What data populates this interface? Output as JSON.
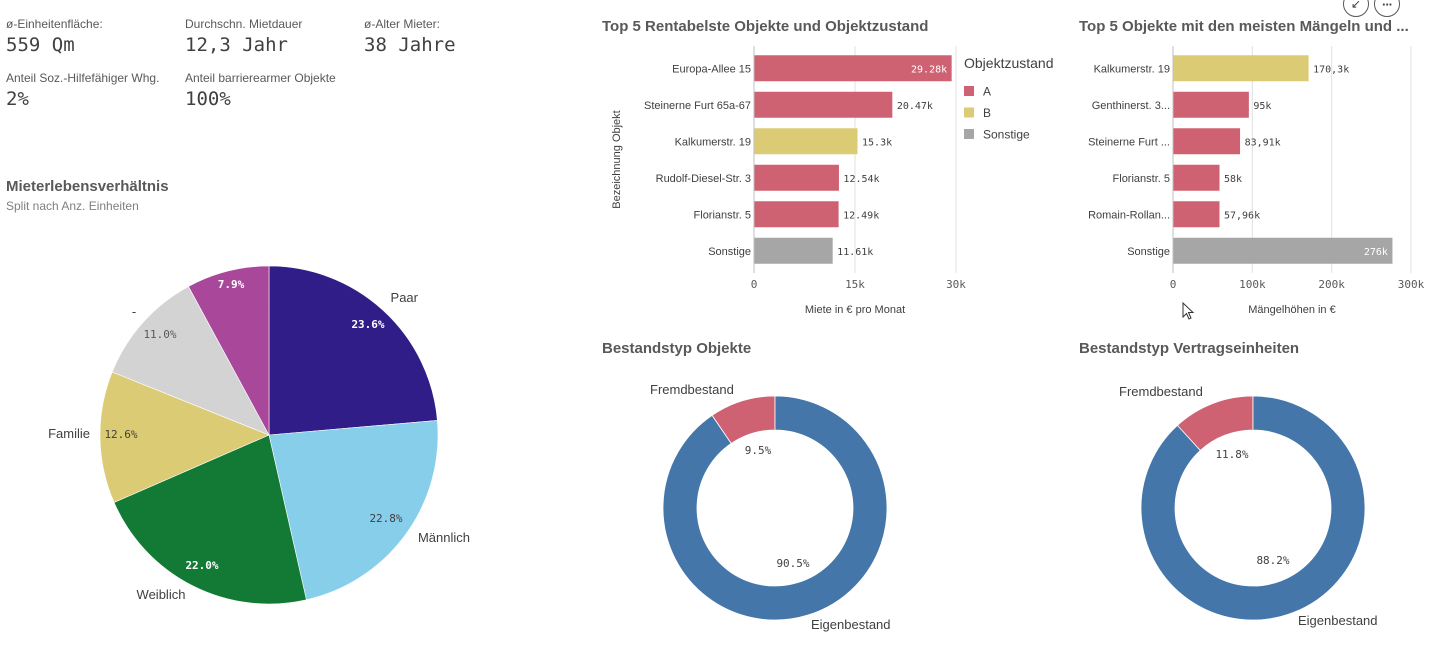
{
  "kpis": {
    "einheitenflaeche": {
      "label": "ø-Einheitenfläche:",
      "value": "559 Qm"
    },
    "mietdauer": {
      "label": "Durchschn. Mietdauer",
      "value": "12,3 Jahr"
    },
    "alter": {
      "label": "ø-Alter Mieter:",
      "value": "38 Jahre"
    },
    "soz": {
      "label": "Anteil Soz.-Hilfefähiger Whg.",
      "value": "2%"
    },
    "barriere": {
      "label": "Anteil barrierearmer Objekte",
      "value": "100%"
    }
  },
  "toolbar": {
    "expand_icon": "collapse-arrows-icon",
    "more_label": "···"
  },
  "pie": {
    "title": "Mieterlebensverhältnis",
    "subtitle": "Split nach Anz. Einheiten",
    "chart_data": {
      "type": "pie",
      "slices": [
        {
          "label": "Paar",
          "value": 23.6,
          "pct": "23.6%",
          "color": "#311d87"
        },
        {
          "label": "Männlich",
          "value": 22.8,
          "pct": "22.8%",
          "color": "#87ceeb"
        },
        {
          "label": "Weiblich",
          "value": 22.0,
          "pct": "22.0%",
          "color": "#137a36"
        },
        {
          "label": "Familie",
          "value": 12.6,
          "pct": "12.6%",
          "color": "#dccb75"
        },
        {
          "label": "-",
          "value": 11.0,
          "pct": "11.0%",
          "color": "#d3d3d3"
        },
        {
          "label": "",
          "value": 7.9,
          "pct": "7.9%",
          "color": "#a9479b"
        }
      ]
    }
  },
  "rent_chart": {
    "title": "Top 5 Rentabelste Objekte und Objektzustand",
    "chart_data": {
      "type": "bar",
      "orientation": "horizontal",
      "categories": [
        "Europa-Allee 15",
        "Steinerne Furt 65a-67",
        "Kalkumerstr. 19",
        "Rudolf-Diesel-Str. 3",
        "Florianstr. 5",
        "Sonstige"
      ],
      "values": [
        29280,
        20470,
        15300,
        12540,
        12490,
        11610
      ],
      "value_labels": [
        "29.28k",
        "20.47k",
        "15.3k",
        "12.54k",
        "12.49k",
        "11.61k"
      ],
      "condition": [
        "A",
        "A",
        "B",
        "A",
        "A",
        "Sonstige"
      ],
      "xlim": [
        0,
        30000
      ],
      "xticks": [
        0,
        15000,
        30000
      ],
      "xtick_labels": [
        "0",
        "15k",
        "30k"
      ],
      "xlabel": "Miete in € pro Monat",
      "ylabel": "Bezeichnung Objekt",
      "legend": {
        "title": "Objektzustand",
        "position": "right",
        "items": [
          {
            "label": "A",
            "color": "#cf6272"
          },
          {
            "label": "B",
            "color": "#dccb75"
          },
          {
            "label": "Sonstige",
            "color": "#a6a6a6"
          }
        ]
      }
    }
  },
  "defects_chart": {
    "title": "Top 5 Objekte mit den meisten Mängeln und ...",
    "chart_data": {
      "type": "bar",
      "orientation": "horizontal",
      "categories": [
        "Kalkumerstr. 19",
        "Genthinerst. 3...",
        "Steinerne Furt ...",
        "Florianstr. 5",
        "Romain-Rollan...",
        "Sonstige"
      ],
      "values": [
        170300,
        95000,
        83910,
        58000,
        57960,
        276000
      ],
      "value_labels": [
        "170,3k",
        "95k",
        "83,91k",
        "58k",
        "57,96k",
        "276k"
      ],
      "condition": [
        "B",
        "A",
        "A",
        "A",
        "A",
        "Sonstige"
      ],
      "xlim": [
        0,
        300000
      ],
      "xticks": [
        0,
        100000,
        200000,
        300000
      ],
      "xtick_labels": [
        "0",
        "100k",
        "200k",
        "300k"
      ],
      "xlabel": "Mängelhöhen in €"
    }
  },
  "donut_objects": {
    "title": "Bestandstyp Objekte",
    "chart_data": {
      "type": "pie",
      "variant": "donut",
      "slices": [
        {
          "label": "Fremdbestand",
          "value": 9.5,
          "pct": "9.5%",
          "color": "#cf6272"
        },
        {
          "label": "Eigenbestand",
          "value": 90.5,
          "pct": "90.5%",
          "color": "#4476aa"
        }
      ]
    }
  },
  "donut_contracts": {
    "title": "Bestandstyp Vertragseinheiten",
    "chart_data": {
      "type": "pie",
      "variant": "donut",
      "slices": [
        {
          "label": "Fremdbestand",
          "value": 11.8,
          "pct": "11.8%",
          "color": "#cf6272"
        },
        {
          "label": "Eigenbestand",
          "value": 88.2,
          "pct": "88.2%",
          "color": "#4476aa"
        }
      ]
    }
  },
  "colors": {
    "A": "#cf6272",
    "B": "#dccb75",
    "Sonstige": "#a6a6a6",
    "grid": "#e0e0e0",
    "axis": "#bfbfbf"
  }
}
